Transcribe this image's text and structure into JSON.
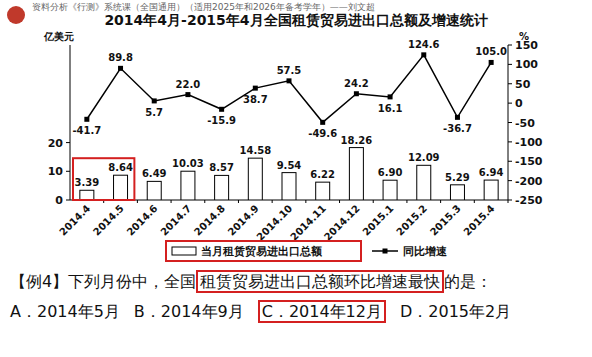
{
  "header": {
    "text": "资料分析《行测》系统课（全国通用）（适用2025年和2026年备考学年）——刘文超"
  },
  "chart_data": {
    "type": "bar",
    "title": "2014年4月-2015年4月全国租赁贸易进出口总额及增速统计",
    "y_label": "亿美元",
    "y2_label": "%",
    "categories": [
      "2014.4",
      "2014.5",
      "2014.6",
      "2014.7",
      "2014.8",
      "2014.9",
      "2014.10",
      "2014.11",
      "2014.12",
      "2015.1",
      "2015.2",
      "2015.3",
      "2015.4"
    ],
    "series": [
      {
        "name": "当月租赁贸易进出口总额",
        "type": "bar",
        "color": "#ffffff",
        "values": [
          3.39,
          8.64,
          6.49,
          10.03,
          8.57,
          14.58,
          9.54,
          6.22,
          18.26,
          6.9,
          12.09,
          5.29,
          6.94
        ],
        "value_labels": [
          "3.39",
          "8.64",
          "6.49",
          "10.03",
          "8.57",
          "14.58",
          "9.54",
          "6.22",
          "18.26",
          "6.90",
          "12.09",
          "5.29",
          "6.94"
        ]
      },
      {
        "name": "同比增速",
        "type": "line",
        "axis": "y2",
        "color": "#000000",
        "marker": "square",
        "values": [
          -41.7,
          89.8,
          5.7,
          22.0,
          -15.9,
          38.7,
          57.5,
          -49.6,
          24.2,
          16.1,
          124.6,
          -36.7,
          105.0
        ],
        "value_labels": [
          "-41.7",
          "89.8",
          "5.7",
          "22.0",
          "-15.9",
          "38.7",
          "57.5",
          "-49.6",
          "24.2",
          "16.1",
          "124.6",
          "-36.7",
          "105.0"
        ]
      }
    ],
    "ylim": [
      0,
      54
    ],
    "yticks": [
      0,
      10,
      20
    ],
    "y2lim": [
      -250,
      150
    ],
    "y2ticks": [
      -250,
      -200,
      -150,
      -100,
      -50,
      0,
      50,
      100,
      150
    ],
    "data_labels": true,
    "legend": "bottom",
    "grid": false
  },
  "question": {
    "stem": [
      "【例4】下列月份中，全国",
      "租赁贸易进出口总额环比增速最快",
      "的是："
    ],
    "options": [
      "A．2014年5月",
      "B．2014年9月",
      "C．2014年12月",
      "D．2015年2月"
    ]
  }
}
